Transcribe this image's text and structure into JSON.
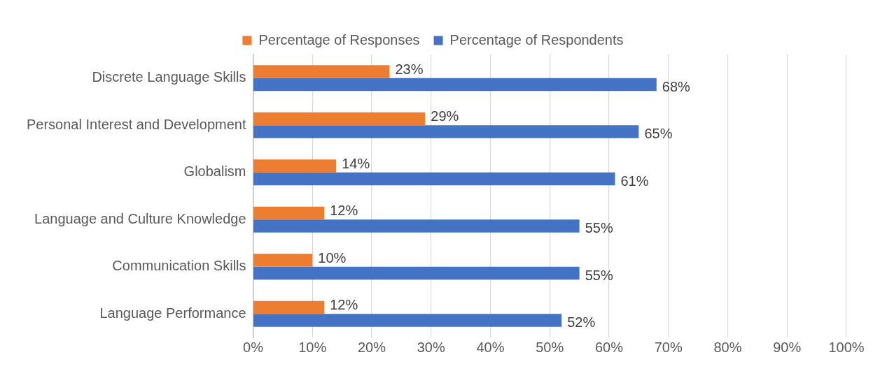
{
  "chart_data": {
    "type": "bar",
    "orientation": "horizontal",
    "categories": [
      "Discrete Language Skills",
      "Personal Interest and Development",
      "Globalism",
      "Language and Culture Knowledge",
      "Communication Skills",
      "Language Performance"
    ],
    "series": [
      {
        "name": "Percentage of Responses",
        "color": "#ed7d31",
        "values": [
          23,
          29,
          14,
          12,
          10,
          12
        ],
        "value_labels": [
          "23%",
          "29%",
          "14%",
          "12%",
          "10%",
          "12%"
        ]
      },
      {
        "name": "Percentage of Respondents",
        "color": "#4472c4",
        "values": [
          68,
          65,
          61,
          55,
          55,
          52
        ],
        "value_labels": [
          "68%",
          "65%",
          "61%",
          "55%",
          "55%",
          "52%"
        ]
      }
    ],
    "xlim": [
      0,
      100
    ],
    "xticks": [
      {
        "value": 0,
        "label": "0%"
      },
      {
        "value": 10,
        "label": "10%"
      },
      {
        "value": 20,
        "label": "20%"
      },
      {
        "value": 30,
        "label": "30%"
      },
      {
        "value": 40,
        "label": "40%"
      },
      {
        "value": 50,
        "label": "50%"
      },
      {
        "value": 60,
        "label": "60%"
      },
      {
        "value": 70,
        "label": "70%"
      },
      {
        "value": 80,
        "label": "80%"
      },
      {
        "value": 90,
        "label": "90%"
      },
      {
        "value": 100,
        "label": "100%"
      }
    ],
    "grid": "x",
    "legend": "top"
  }
}
